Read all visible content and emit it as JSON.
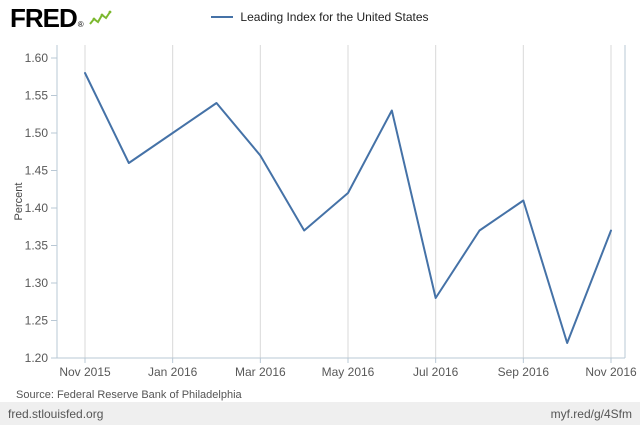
{
  "header": {
    "logo_text": "FRED",
    "logo_reg": "®",
    "legend_label": "Leading Index for the United States"
  },
  "chart_data": {
    "type": "line",
    "title": "Leading Index for the United States",
    "xlabel": "",
    "ylabel": "Percent",
    "x": [
      "Nov 2015",
      "Dec 2015",
      "Jan 2016",
      "Feb 2016",
      "Mar 2016",
      "Apr 2016",
      "May 2016",
      "Jun 2016",
      "Jul 2016",
      "Aug 2016",
      "Sep 2016",
      "Oct 2016",
      "Nov 2016"
    ],
    "values": [
      1.58,
      1.46,
      1.5,
      1.54,
      1.47,
      1.37,
      1.42,
      1.53,
      1.28,
      1.37,
      1.41,
      1.22,
      1.37
    ],
    "ylim": [
      1.2,
      1.6
    ],
    "yticks": [
      1.2,
      1.25,
      1.3,
      1.35,
      1.4,
      1.45,
      1.5,
      1.55,
      1.6
    ],
    "xticks": [
      "Nov 2015",
      "Jan 2016",
      "Mar 2016",
      "May 2016",
      "Jul 2016",
      "Sep 2016",
      "Nov 2016"
    ],
    "line_color": "#4572a7",
    "grid": "vertical",
    "legend_position": "top-center"
  },
  "footer": {
    "source": "Source: Federal Reserve Bank of Philadelphia",
    "site": "fred.stlouisfed.org",
    "short_url": "myf.red/g/4Sfm"
  },
  "colors": {
    "line": "#4572a7",
    "frame": "#b9c8d5",
    "grid": "#d9d9d9",
    "tick_text": "#585858",
    "logo_green": "#7cb82f"
  }
}
